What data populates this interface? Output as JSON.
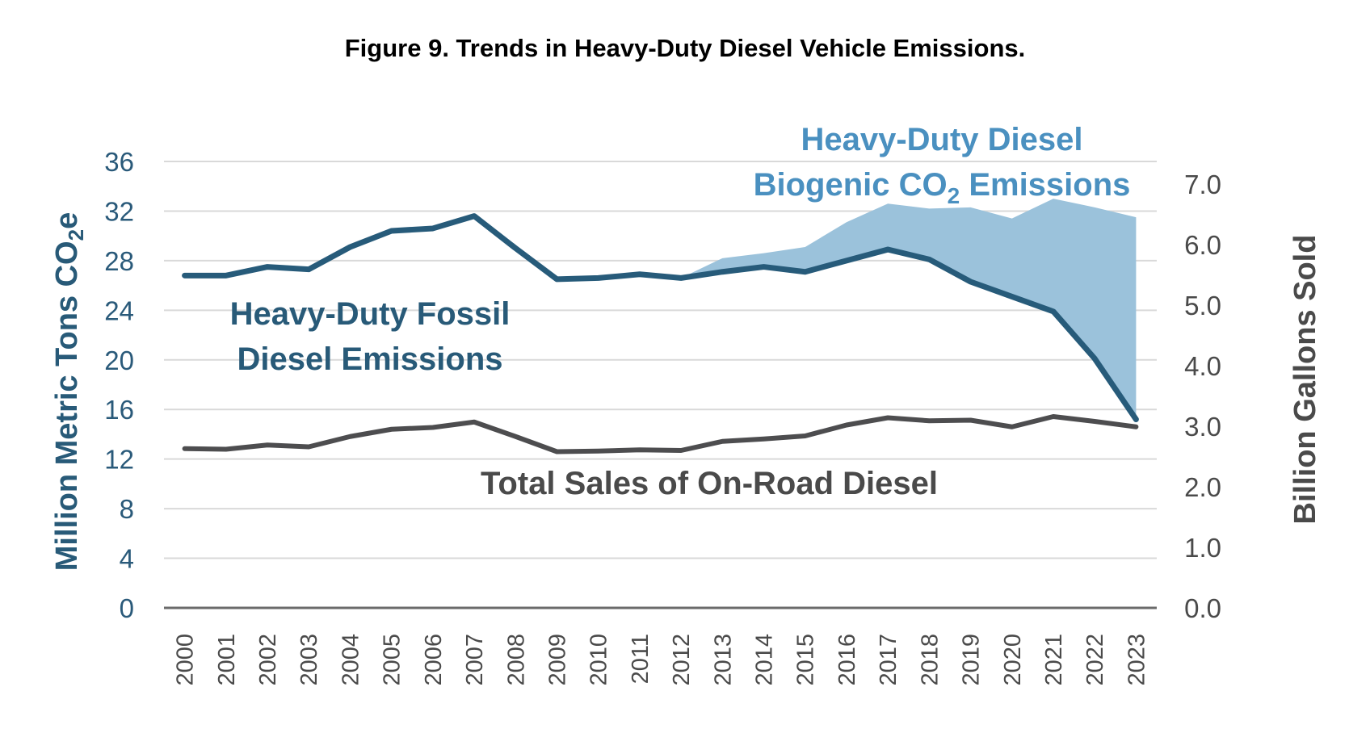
{
  "chart_data": {
    "type": "line",
    "title": "Figure 9. Trends in Heavy-Duty Diesel Vehicle Emissions.",
    "xlabel": "",
    "ylabel": "Million Metric Tons CO2e",
    "ylabel_parts": {
      "main": "Million Metric Tons CO",
      "sub": "2",
      "tail": "e"
    },
    "y2label": "Billion Gallons Sold",
    "ylim": [
      0,
      36
    ],
    "y2lim": [
      0,
      7
    ],
    "yticks": [
      "0",
      "4",
      "8",
      "12",
      "16",
      "20",
      "24",
      "28",
      "32",
      "36"
    ],
    "y2ticks": [
      "0.0",
      "1.0",
      "2.0",
      "3.0",
      "4.0",
      "5.0",
      "6.0",
      "7.0"
    ],
    "grid": true,
    "x": [
      "2000",
      "2001",
      "2002",
      "2003",
      "2004",
      "2005",
      "2006",
      "2007",
      "2008",
      "2009",
      "2010",
      "2011",
      "2012",
      "2013",
      "2014",
      "2015",
      "2016",
      "2017",
      "2018",
      "2019",
      "2020",
      "2021",
      "2022",
      "2023"
    ],
    "series": [
      {
        "name": "Heavy-Duty Fossil Diesel Emissions",
        "axis": "left",
        "kind": "line",
        "color": "#275b7a",
        "values": [
          26.8,
          26.8,
          27.5,
          27.3,
          29.1,
          30.4,
          30.6,
          31.6,
          29.0,
          26.5,
          26.6,
          26.9,
          26.6,
          27.1,
          27.5,
          27.1,
          28.0,
          28.9,
          28.1,
          26.3,
          25.1,
          23.9,
          20.1,
          15.2
        ]
      },
      {
        "name": "Heavy-Duty Diesel Biogenic CO2 Emissions",
        "axis": "left",
        "kind": "stacked-area",
        "color": "#9bc2db",
        "note": "values are biogenic emissions stacked on top of fossil emissions",
        "values": [
          null,
          null,
          null,
          null,
          null,
          null,
          null,
          null,
          null,
          null,
          null,
          null,
          0.0,
          1.1,
          1.1,
          2.0,
          3.1,
          3.7,
          4.1,
          6.0,
          6.3,
          9.1,
          12.2,
          16.3
        ]
      },
      {
        "name": "Total Sales of On-Road Diesel",
        "axis": "right",
        "kind": "line",
        "color": "#4d4d4f",
        "values": [
          2.63,
          2.62,
          2.69,
          2.66,
          2.83,
          2.95,
          2.98,
          3.07,
          2.83,
          2.58,
          2.59,
          2.61,
          2.6,
          2.75,
          2.79,
          2.84,
          3.02,
          3.14,
          3.09,
          3.1,
          2.99,
          3.16,
          3.08,
          2.99
        ]
      }
    ],
    "annotations": {
      "fossil": [
        "Heavy-Duty Fossil",
        "Diesel Emissions"
      ],
      "biogenic_line1": "Heavy-Duty Diesel",
      "biogenic_line2": {
        "main": "Biogenic CO",
        "sub": "2",
        "tail": " Emissions"
      },
      "sales": "Total Sales of On-Road Diesel"
    },
    "colors": {
      "gridline": "#d9d9d9",
      "baseline": "#6b6b6b",
      "left_axis_text": "#285a78",
      "right_axis_text": "#4a4a4a"
    }
  }
}
